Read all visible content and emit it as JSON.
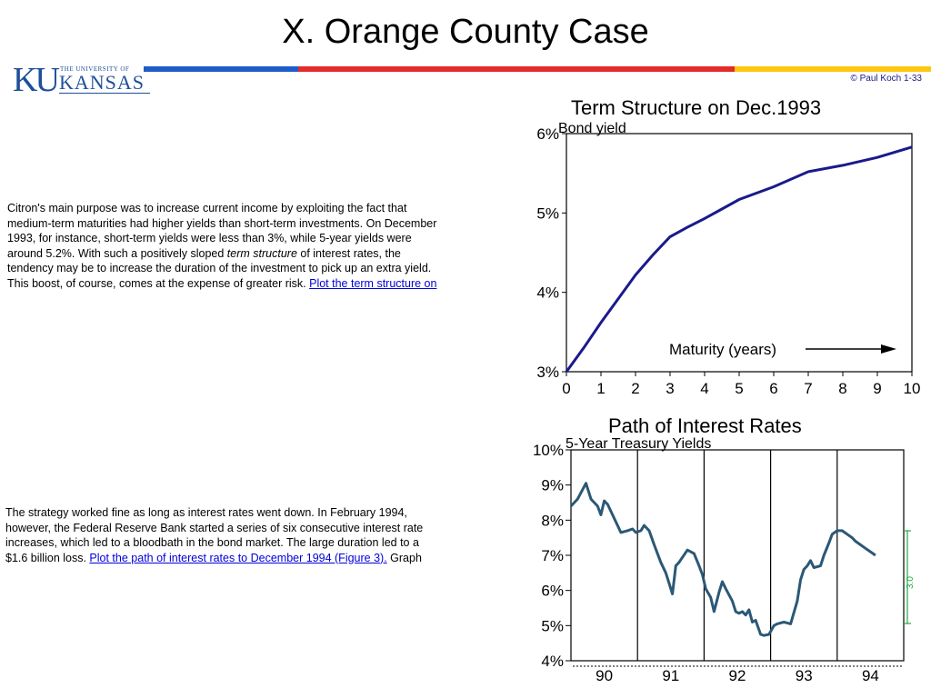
{
  "slide": {
    "title": "X.  Orange County Case",
    "copyright": "© Paul Koch 1-33"
  },
  "logo": {
    "mark": "KU",
    "university_line": "THE UNIVERSITY OF",
    "name": "KANSAS"
  },
  "colors": {
    "rule_blue": "#1f5cc7",
    "rule_red": "#e32b2b",
    "rule_yellow": "#ffc60f",
    "line_navy": "#1a1a8c",
    "line_teal": "#2b5876"
  },
  "paragraph1": {
    "line1": "Citron's main purpose was to increase current income by exploiting the fact that",
    "line2": "medium-term maturities had higher yields than short-term investments. On December",
    "line3": "1993, for instance, short-term yields were less than 3%, while 5-year yields were",
    "line4": "around 5.2%. With such a positively sloped ",
    "line4_em": "term structure",
    "line4_end": " of interest rates, the",
    "line5": "tendency may be to increase the duration of the investment to pick up an extra yield.",
    "line6": "This boost, of course, comes at the expense of greater risk. ",
    "link": "Plot the term structure on"
  },
  "paragraph2": {
    "line1": "The strategy worked fine as long as interest rates went down. In February 1994,",
    "line2": "however, the Federal Reserve Bank started a series of six consecutive interest rate",
    "line3": "increases, which led to a bloodbath in the bond market. The large duration led to a",
    "line4": "$1.6 billion loss. ",
    "link": "Plot the path of interest rates to December 1994 (Figure 3).",
    "tail": " Graph"
  },
  "chart_data": [
    {
      "type": "line",
      "title": "Term Structure on Dec.1993",
      "ylabel": "Bond yield",
      "xlabel": "Maturity (years)",
      "x": [
        0,
        0.5,
        1,
        1.5,
        2,
        2.5,
        3,
        3.5,
        4,
        4.5,
        5,
        6,
        7,
        8,
        9,
        10
      ],
      "y": [
        3.0,
        3.3,
        3.62,
        3.92,
        4.22,
        4.47,
        4.7,
        4.82,
        4.93,
        5.05,
        5.17,
        5.33,
        5.52,
        5.6,
        5.7,
        5.83
      ],
      "xlim": [
        0,
        10
      ],
      "ylim": [
        3,
        6
      ],
      "x_ticks": [
        "0",
        "1",
        "2",
        "3",
        "4",
        "5",
        "6",
        "7",
        "8",
        "9",
        "10"
      ],
      "y_ticks": [
        "3%",
        "4%",
        "5%",
        "6%"
      ]
    },
    {
      "type": "line",
      "title": "Path of Interest Rates",
      "subtitle": "5-Year Treasury Yields",
      "x": [
        0,
        0.2,
        0.45,
        0.6,
        0.8,
        0.9,
        1.0,
        1.1,
        1.3,
        1.5,
        1.7,
        1.85,
        1.95,
        2.1,
        2.2,
        2.35,
        2.5,
        2.7,
        2.85,
        2.95,
        3.05,
        3.15,
        3.25,
        3.5,
        3.7,
        3.85,
        3.95,
        4.05,
        4.2,
        4.3,
        4.45,
        4.55,
        4.65,
        4.85,
        4.95,
        5.05,
        5.15,
        5.25,
        5.35,
        5.45,
        5.55,
        5.7,
        5.8,
        5.95,
        6.1,
        6.2,
        6.4,
        6.6,
        6.8,
        6.9,
        7.0,
        7.1,
        7.2,
        7.3,
        7.5,
        7.6,
        7.75,
        7.85,
        8.0,
        8.15,
        8.3,
        8.45,
        8.55,
        8.7,
        8.85,
        9.0,
        9.15
      ],
      "y": [
        8.4,
        8.6,
        9.05,
        8.6,
        8.4,
        8.15,
        8.55,
        8.45,
        8.05,
        7.65,
        7.7,
        7.75,
        7.65,
        7.7,
        7.85,
        7.7,
        7.3,
        6.8,
        6.5,
        6.2,
        5.9,
        6.7,
        6.8,
        7.15,
        7.05,
        6.7,
        6.45,
        6.05,
        5.8,
        5.4,
        5.95,
        6.25,
        6.05,
        5.7,
        5.4,
        5.35,
        5.4,
        5.3,
        5.45,
        5.1,
        5.15,
        4.75,
        4.72,
        4.75,
        5.0,
        5.05,
        5.1,
        5.05,
        5.7,
        6.3,
        6.6,
        6.7,
        6.85,
        6.65,
        6.7,
        7.0,
        7.35,
        7.6,
        7.7,
        7.7,
        7.6,
        7.5,
        7.4,
        7.3,
        7.2,
        7.1,
        7.0
      ],
      "xlim": [
        0,
        10
      ],
      "ylim": [
        4,
        10
      ],
      "x_ticks": [
        "90",
        "91",
        "92",
        "93",
        "94"
      ],
      "y_ticks": [
        "4%",
        "5%",
        "6%",
        "7%",
        "8%",
        "9%",
        "10%"
      ],
      "annotation": "3.0"
    }
  ]
}
